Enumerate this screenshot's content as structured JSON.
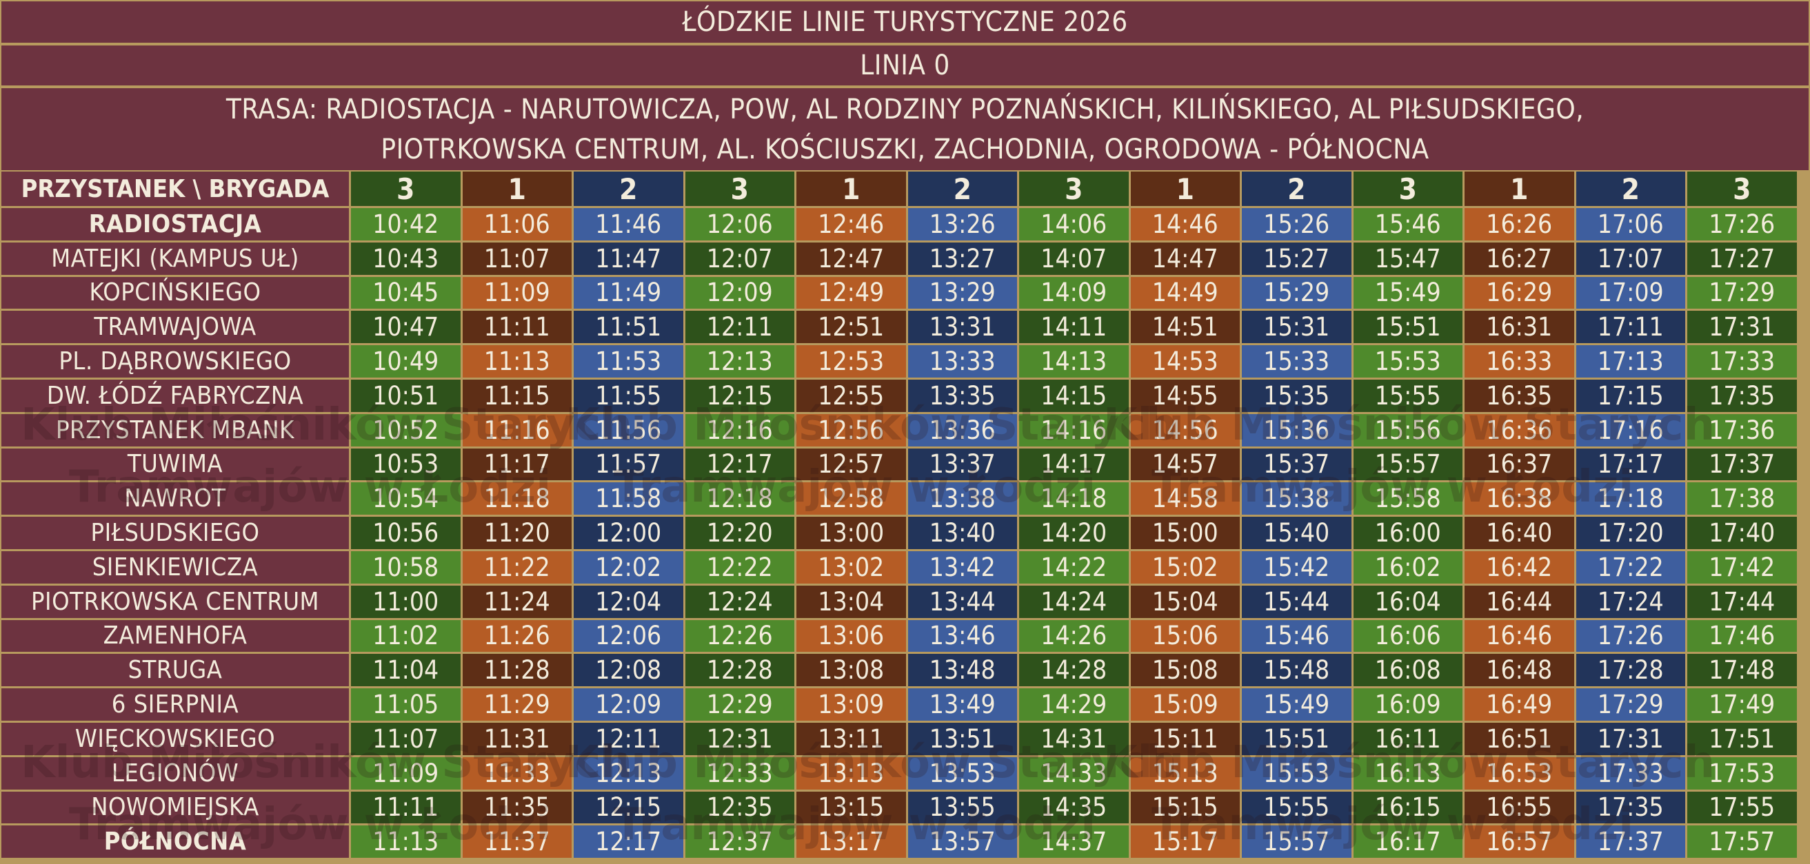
{
  "header": {
    "title": "łódzkie linie turystyczne 2026",
    "line": "linia 0",
    "route_line1": "trasa: radiostacja - narutowicza, pow, al rodziny poznańskich, kilińskiego, al piłsudskiego,",
    "route_line2": "piotrkowska centrum, al. kościuszki, zachodnia, ogrodowa - północna"
  },
  "colors": {
    "header_bg": "#6d3340",
    "border": "#b79a5e",
    "brigade": {
      "1": {
        "light": "#b55c25",
        "dark": "#5e2e16"
      },
      "2": {
        "light": "#3e5e9e",
        "dark": "#22345a"
      },
      "3": {
        "light": "#4f8a2c",
        "dark": "#2e521b"
      }
    }
  },
  "table": {
    "corner_label": "przystanek \\ brygada",
    "brigades": [
      "3",
      "1",
      "2",
      "3",
      "1",
      "2",
      "3",
      "1",
      "2",
      "3",
      "1",
      "2",
      "3"
    ],
    "stops": [
      {
        "name": "radiostacja",
        "strong": true,
        "times": [
          "10:42",
          "11:06",
          "11:46",
          "12:06",
          "12:46",
          "13:26",
          "14:06",
          "14:46",
          "15:26",
          "15:46",
          "16:26",
          "17:06",
          "17:26"
        ]
      },
      {
        "name": "matejki (kampus uł)",
        "strong": false,
        "times": [
          "10:43",
          "11:07",
          "11:47",
          "12:07",
          "12:47",
          "13:27",
          "14:07",
          "14:47",
          "15:27",
          "15:47",
          "16:27",
          "17:07",
          "17:27"
        ]
      },
      {
        "name": "kopcińskiego",
        "strong": false,
        "times": [
          "10:45",
          "11:09",
          "11:49",
          "12:09",
          "12:49",
          "13:29",
          "14:09",
          "14:49",
          "15:29",
          "15:49",
          "16:29",
          "17:09",
          "17:29"
        ]
      },
      {
        "name": "tramwajowa",
        "strong": false,
        "times": [
          "10:47",
          "11:11",
          "11:51",
          "12:11",
          "12:51",
          "13:31",
          "14:11",
          "14:51",
          "15:31",
          "15:51",
          "16:31",
          "17:11",
          "17:31"
        ]
      },
      {
        "name": "pl. dąbrowskiego",
        "strong": false,
        "times": [
          "10:49",
          "11:13",
          "11:53",
          "12:13",
          "12:53",
          "13:33",
          "14:13",
          "14:53",
          "15:33",
          "15:53",
          "16:33",
          "17:13",
          "17:33"
        ]
      },
      {
        "name": "dw. łódź fabryczna",
        "strong": false,
        "times": [
          "10:51",
          "11:15",
          "11:55",
          "12:15",
          "12:55",
          "13:35",
          "14:15",
          "14:55",
          "15:35",
          "15:55",
          "16:35",
          "17:15",
          "17:35"
        ]
      },
      {
        "name": "przystanek mbank",
        "strong": false,
        "times": [
          "10:52",
          "11:16",
          "11:56",
          "12:16",
          "12:56",
          "13:36",
          "14:16",
          "14:56",
          "15:36",
          "15:56",
          "16:36",
          "17:16",
          "17:36"
        ]
      },
      {
        "name": "tuwima",
        "strong": false,
        "times": [
          "10:53",
          "11:17",
          "11:57",
          "12:17",
          "12:57",
          "13:37",
          "14:17",
          "14:57",
          "15:37",
          "15:57",
          "16:37",
          "17:17",
          "17:37"
        ]
      },
      {
        "name": "nawrot",
        "strong": false,
        "times": [
          "10:54",
          "11:18",
          "11:58",
          "12:18",
          "12:58",
          "13:38",
          "14:18",
          "14:58",
          "15:38",
          "15:58",
          "16:38",
          "17:18",
          "17:38"
        ]
      },
      {
        "name": "piłsudskiego",
        "strong": false,
        "times": [
          "10:56",
          "11:20",
          "12:00",
          "12:20",
          "13:00",
          "13:40",
          "14:20",
          "15:00",
          "15:40",
          "16:00",
          "16:40",
          "17:20",
          "17:40"
        ]
      },
      {
        "name": "sienkiewicza",
        "strong": false,
        "times": [
          "10:58",
          "11:22",
          "12:02",
          "12:22",
          "13:02",
          "13:42",
          "14:22",
          "15:02",
          "15:42",
          "16:02",
          "16:42",
          "17:22",
          "17:42"
        ]
      },
      {
        "name": "piotrkowska centrum",
        "strong": false,
        "times": [
          "11:00",
          "11:24",
          "12:04",
          "12:24",
          "13:04",
          "13:44",
          "14:24",
          "15:04",
          "15:44",
          "16:04",
          "16:44",
          "17:24",
          "17:44"
        ]
      },
      {
        "name": "zamenhofa",
        "strong": false,
        "times": [
          "11:02",
          "11:26",
          "12:06",
          "12:26",
          "13:06",
          "13:46",
          "14:26",
          "15:06",
          "15:46",
          "16:06",
          "16:46",
          "17:26",
          "17:46"
        ]
      },
      {
        "name": "struga",
        "strong": false,
        "times": [
          "11:04",
          "11:28",
          "12:08",
          "12:28",
          "13:08",
          "13:48",
          "14:28",
          "15:08",
          "15:48",
          "16:08",
          "16:48",
          "17:28",
          "17:48"
        ]
      },
      {
        "name": "6 sierpnia",
        "strong": false,
        "times": [
          "11:05",
          "11:29",
          "12:09",
          "12:29",
          "13:09",
          "13:49",
          "14:29",
          "15:09",
          "15:49",
          "16:09",
          "16:49",
          "17:29",
          "17:49"
        ]
      },
      {
        "name": "więckowskiego",
        "strong": false,
        "times": [
          "11:07",
          "11:31",
          "12:11",
          "12:31",
          "13:11",
          "13:51",
          "14:31",
          "15:11",
          "15:51",
          "16:11",
          "16:51",
          "17:31",
          "17:51"
        ]
      },
      {
        "name": "legionów",
        "strong": false,
        "times": [
          "11:09",
          "11:33",
          "12:13",
          "12:33",
          "13:13",
          "13:53",
          "14:33",
          "15:13",
          "15:53",
          "16:13",
          "16:53",
          "17:33",
          "17:53"
        ]
      },
      {
        "name": "nowomiejska",
        "strong": false,
        "times": [
          "11:11",
          "11:35",
          "12:15",
          "12:35",
          "13:15",
          "13:55",
          "14:35",
          "15:15",
          "15:55",
          "16:15",
          "16:55",
          "17:35",
          "17:55"
        ]
      },
      {
        "name": "północna",
        "strong": true,
        "times": [
          "11:13",
          "11:37",
          "12:17",
          "12:37",
          "13:17",
          "13:57",
          "14:37",
          "15:17",
          "15:57",
          "16:17",
          "16:57",
          "17:37",
          "17:57"
        ]
      }
    ]
  },
  "watermark": {
    "line1": "Klub Miłośników Starych",
    "line2": "Tramwajów w Łodzi"
  }
}
